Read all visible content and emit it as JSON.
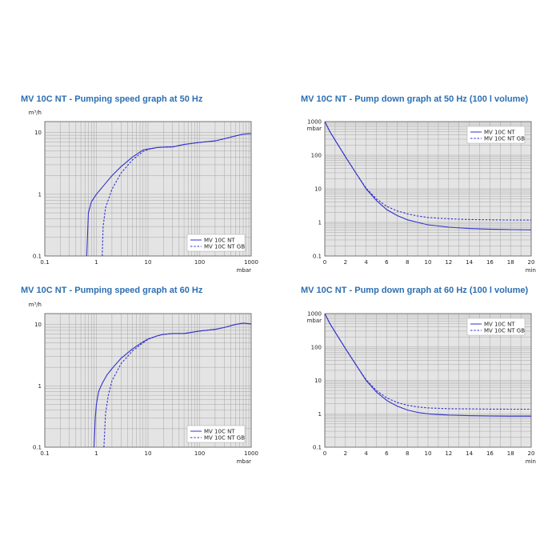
{
  "chart_data": [
    {
      "type": "line",
      "title": "MV 10C NT - Pumping speed graph at 50 Hz",
      "xlabel": "mbar",
      "ylabel": "m³/h",
      "xscale": "log",
      "yscale": "log",
      "xlim": [
        0.1,
        1000
      ],
      "ylim": [
        0.1,
        15
      ],
      "xticks": [
        "0.1",
        "1",
        "10",
        "100",
        "1000"
      ],
      "yticks": [
        "0.1",
        "1",
        "10"
      ],
      "grid": true,
      "legend": "bottom-right",
      "series": [
        {
          "name": "MV 10C NT",
          "style": "solid",
          "x": [
            0.65,
            0.7,
            0.8,
            1,
            1.5,
            2,
            3,
            5,
            8,
            10,
            15,
            20,
            30,
            50,
            100,
            200,
            300,
            500,
            700,
            1000
          ],
          "y": [
            0.1,
            0.5,
            0.75,
            1.0,
            1.5,
            2.0,
            2.8,
            4.0,
            5.2,
            5.4,
            5.7,
            5.8,
            5.85,
            6.4,
            6.9,
            7.3,
            7.9,
            8.8,
            9.4,
            9.6
          ]
        },
        {
          "name": "MV 10C NT GB",
          "style": "dashed",
          "x": [
            1.3,
            1.35,
            1.5,
            2,
            3,
            5,
            8,
            10,
            15,
            20,
            30,
            50,
            100,
            200,
            300,
            500,
            700,
            1000
          ],
          "y": [
            0.1,
            0.3,
            0.6,
            1.2,
            2.2,
            3.6,
            4.9,
            5.3,
            5.7,
            5.8,
            5.85,
            6.4,
            6.9,
            7.3,
            7.9,
            8.8,
            9.4,
            9.6
          ]
        }
      ]
    },
    {
      "type": "line",
      "title": "MV 10C NT - Pump down graph at 50 Hz (100 l volume)",
      "xlabel": "min",
      "ylabel": "mbar",
      "xscale": "linear",
      "yscale": "log",
      "xlim": [
        0,
        20
      ],
      "ylim": [
        0.1,
        1000
      ],
      "xticks": [
        "0",
        "2",
        "4",
        "6",
        "8",
        "10",
        "12",
        "14",
        "16",
        "18",
        "20"
      ],
      "yticks": [
        "0.1",
        "1",
        "10",
        "100",
        "1000"
      ],
      "grid": true,
      "legend": "top-right",
      "series": [
        {
          "name": "MV 10C NT",
          "style": "solid",
          "x": [
            0,
            0.5,
            1,
            2,
            3,
            4,
            5,
            6,
            7,
            8,
            9,
            10,
            12,
            14,
            16,
            18,
            20
          ],
          "y": [
            1000,
            500,
            280,
            90,
            30,
            10,
            4.5,
            2.4,
            1.6,
            1.2,
            1.0,
            0.85,
            0.72,
            0.66,
            0.63,
            0.61,
            0.6
          ]
        },
        {
          "name": "MV 10C NT GB",
          "style": "dashed",
          "x": [
            0,
            0.5,
            1,
            2,
            3,
            4,
            5,
            6,
            7,
            8,
            9,
            10,
            12,
            14,
            16,
            18,
            20
          ],
          "y": [
            1000,
            500,
            280,
            90,
            30,
            10.5,
            5.0,
            3.0,
            2.2,
            1.8,
            1.55,
            1.4,
            1.28,
            1.22,
            1.2,
            1.18,
            1.17
          ]
        }
      ]
    },
    {
      "type": "line",
      "title": "MV 10C NT - Pumping speed graph at 60 Hz",
      "xlabel": "mbar",
      "ylabel": "m³/h",
      "xscale": "log",
      "yscale": "log",
      "xlim": [
        0.1,
        1000
      ],
      "ylim": [
        0.1,
        15
      ],
      "xticks": [
        "0.1",
        "1",
        "10",
        "100",
        "1000"
      ],
      "yticks": [
        "0.1",
        "1",
        "10"
      ],
      "grid": true,
      "legend": "bottom-right",
      "series": [
        {
          "name": "MV 10C NT",
          "style": "solid",
          "x": [
            0.9,
            0.95,
            1,
            1.1,
            1.3,
            1.6,
            2,
            3,
            5,
            8,
            10,
            15,
            20,
            30,
            50,
            100,
            200,
            300,
            500,
            700,
            1000
          ],
          "y": [
            0.1,
            0.3,
            0.5,
            0.8,
            1.1,
            1.5,
            1.9,
            2.8,
            4.0,
            5.2,
            5.8,
            6.5,
            6.9,
            7.1,
            7.1,
            7.8,
            8.3,
            8.9,
            10.0,
            10.5,
            10.2
          ]
        },
        {
          "name": "MV 10C NT GB",
          "style": "dashed",
          "x": [
            1.4,
            1.5,
            1.7,
            2,
            3,
            5,
            8,
            10,
            15,
            20,
            30,
            50,
            100,
            200,
            300,
            500,
            700,
            1000
          ],
          "y": [
            0.1,
            0.35,
            0.7,
            1.2,
            2.3,
            3.7,
            5.0,
            5.7,
            6.5,
            6.9,
            7.1,
            7.1,
            7.8,
            8.3,
            8.9,
            10.0,
            10.5,
            10.2
          ]
        }
      ]
    },
    {
      "type": "line",
      "title": "MV 10C NT - Pump down graph at 60 Hz (100 l volume)",
      "xlabel": "min",
      "ylabel": "mbar",
      "xscale": "linear",
      "yscale": "log",
      "xlim": [
        0,
        20
      ],
      "ylim": [
        0.1,
        1000
      ],
      "xticks": [
        "0",
        "2",
        "4",
        "6",
        "8",
        "10",
        "12",
        "14",
        "16",
        "18",
        "20"
      ],
      "yticks": [
        "0.1",
        "1",
        "10",
        "100",
        "1000"
      ],
      "grid": true,
      "legend": "top-right",
      "series": [
        {
          "name": "MV 10C NT",
          "style": "solid",
          "x": [
            0,
            0.5,
            1,
            2,
            3,
            4,
            5,
            6,
            7,
            8,
            9,
            10,
            12,
            14,
            16,
            18,
            20
          ],
          "y": [
            1000,
            500,
            280,
            90,
            30,
            10,
            4.5,
            2.5,
            1.7,
            1.3,
            1.1,
            1.0,
            0.92,
            0.88,
            0.86,
            0.85,
            0.85
          ]
        },
        {
          "name": "MV 10C NT GB",
          "style": "dashed",
          "x": [
            0,
            0.5,
            1,
            2,
            3,
            4,
            5,
            6,
            7,
            8,
            9,
            10,
            12,
            14,
            16,
            18,
            20
          ],
          "y": [
            1000,
            500,
            280,
            90,
            30,
            10.5,
            5.0,
            3.0,
            2.2,
            1.8,
            1.6,
            1.5,
            1.42,
            1.4,
            1.38,
            1.37,
            1.37
          ]
        }
      ]
    }
  ],
  "style": {
    "line_color": "#3333cc",
    "grid_color": "#a6a6a6",
    "plot_bg": "#e4e4e4",
    "title_color": "#2d6fb3"
  }
}
